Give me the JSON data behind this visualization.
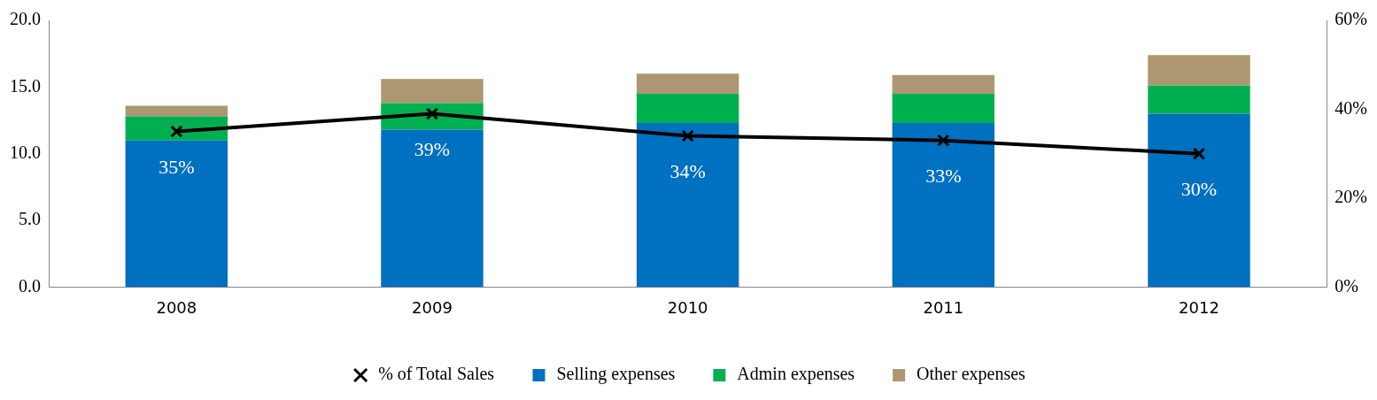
{
  "chart_data": {
    "type": "bar",
    "stacked": true,
    "categories": [
      "2008",
      "2009",
      "2010",
      "2011",
      "2012"
    ],
    "series": [
      {
        "name": "Selling expenses",
        "color": "#0070c0",
        "values": [
          11.0,
          11.8,
          12.3,
          12.3,
          13.0
        ]
      },
      {
        "name": "Admin expenses",
        "color": "#00b050",
        "values": [
          1.8,
          2.0,
          2.2,
          2.2,
          2.1
        ]
      },
      {
        "name": "Other expenses",
        "color": "#ad9672",
        "values": [
          0.8,
          1.8,
          1.5,
          1.4,
          2.3
        ]
      },
      {
        "name": "% of Total Sales",
        "type": "line",
        "axis": "y2",
        "color": "#000000",
        "marker": "cross",
        "values": [
          35,
          39,
          34,
          33,
          30
        ],
        "value_labels": [
          "35%",
          "39%",
          "34%",
          "33%",
          "30%"
        ]
      }
    ],
    "ylim": [
      0,
      20
    ],
    "yticks": [
      {
        "value": 0,
        "label": "0.0"
      },
      {
        "value": 5,
        "label": "5.0"
      },
      {
        "value": 10,
        "label": "10.0"
      },
      {
        "value": 15,
        "label": "15.0"
      },
      {
        "value": 20,
        "label": "20.0"
      }
    ],
    "y2lim": [
      0,
      60
    ],
    "y2ticks": [
      {
        "value": 0,
        "label": "0%"
      },
      {
        "value": 20,
        "label": "20%"
      },
      {
        "value": 40,
        "label": "40%"
      },
      {
        "value": 60,
        "label": "60%"
      }
    ],
    "grid": false,
    "legend": "bottom"
  }
}
